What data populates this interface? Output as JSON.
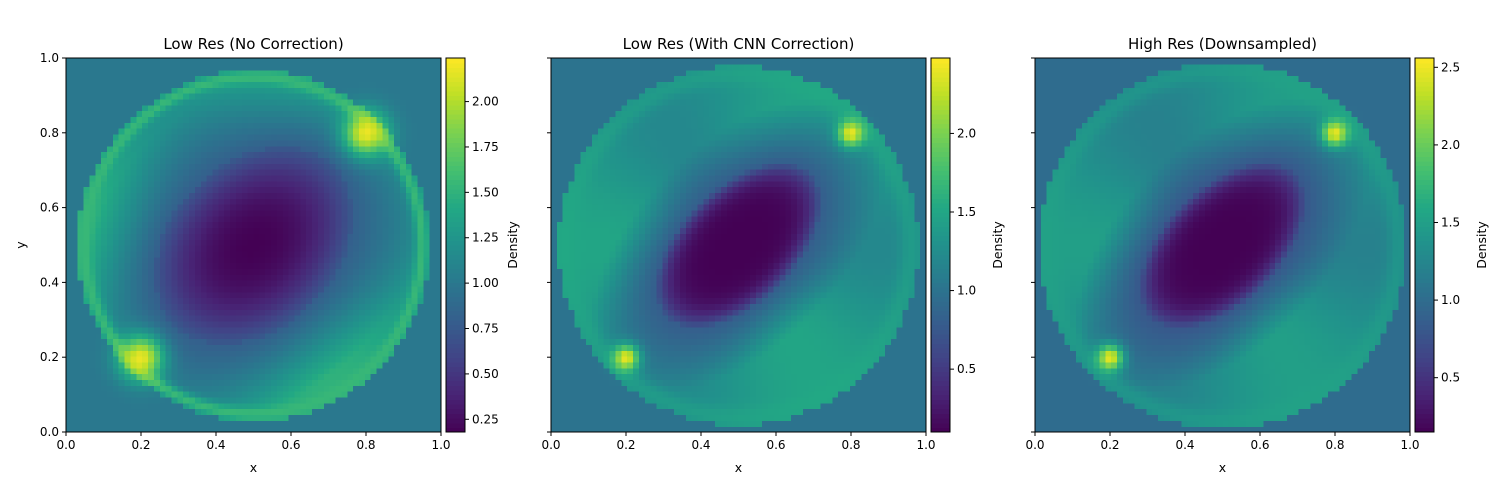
{
  "chart_data": [
    {
      "type": "heatmap",
      "title": "Low Res (No Correction)",
      "xlabel": "x",
      "ylabel": "y",
      "xlim": [
        0.0,
        1.0
      ],
      "ylim": [
        0.0,
        1.0
      ],
      "xticks": [
        "0.0",
        "0.2",
        "0.4",
        "0.6",
        "0.8",
        "1.0"
      ],
      "yticks": [
        "0.0",
        "0.2",
        "0.4",
        "0.6",
        "0.8",
        "1.0"
      ],
      "colorbar": {
        "label": "Density",
        "range": [
          0.18,
          2.24
        ],
        "ticks": [
          "0.25",
          "0.50",
          "0.75",
          "1.00",
          "1.25",
          "1.50",
          "1.75",
          "2.00"
        ]
      },
      "field": {
        "ring_radius": 0.45,
        "ring_peak": 1.55,
        "hot_spot_peak": 2.24,
        "center_min": 0.18,
        "background": 1.0
      }
    },
    {
      "type": "heatmap",
      "title": "Low Res (With CNN Correction)",
      "xlabel": "x",
      "ylabel": "",
      "xlim": [
        0.0,
        1.0
      ],
      "ylim": [
        0.0,
        1.0
      ],
      "xticks": [
        "0.0",
        "0.2",
        "0.4",
        "0.6",
        "0.8",
        "1.0"
      ],
      "yticks": [],
      "colorbar": {
        "label": "Density",
        "range": [
          0.1,
          2.48
        ],
        "ticks": [
          "0.5",
          "1.0",
          "1.5",
          "2.0"
        ]
      },
      "field": {
        "ring_radius": 0.46,
        "ring_peak": 1.55,
        "hot_spot_peak": 2.48,
        "center_min": 0.1,
        "background": 1.0
      }
    },
    {
      "type": "heatmap",
      "title": "High Res (Downsampled)",
      "xlabel": "x",
      "ylabel": "",
      "xlim": [
        0.0,
        1.0
      ],
      "ylim": [
        0.0,
        1.0
      ],
      "xticks": [
        "0.0",
        "0.2",
        "0.4",
        "0.6",
        "0.8",
        "1.0"
      ],
      "yticks": [],
      "colorbar": {
        "label": "Density",
        "range": [
          0.15,
          2.56
        ],
        "ticks": [
          "0.5",
          "1.0",
          "1.5",
          "2.0",
          "2.5"
        ]
      },
      "field": {
        "ring_radius": 0.47,
        "ring_peak": 1.55,
        "hot_spot_peak": 2.56,
        "center_min": 0.15,
        "background": 1.0
      }
    }
  ],
  "colormap": "viridis"
}
